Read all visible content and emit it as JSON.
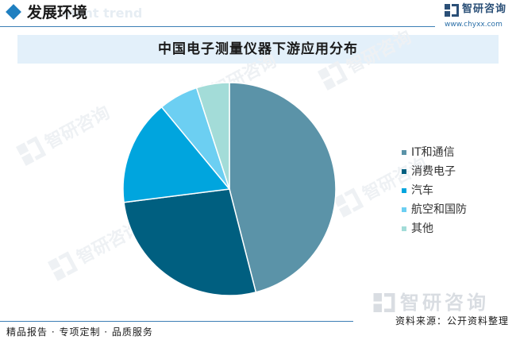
{
  "header": {
    "section_title": "发展环境",
    "section_watermark": "ment trend",
    "brand_name": "智研咨询",
    "brand_url": "www.chyxx.com"
  },
  "chart_data": {
    "type": "pie",
    "title": "中国电子测量仪器下游应用分布",
    "slices": [
      {
        "label": "IT和通信",
        "value": 46,
        "color": "#5b93a8"
      },
      {
        "label": "消费电子",
        "value": 27,
        "color": "#005f80"
      },
      {
        "label": "汽车",
        "value": 16,
        "color": "#00a5de"
      },
      {
        "label": "航空和国防",
        "value": 6,
        "color": "#6ccff2"
      },
      {
        "label": "其他",
        "value": 5,
        "color": "#a3dcd8"
      }
    ],
    "legend_position": "right"
  },
  "watermark": {
    "brand_name": "智研咨询"
  },
  "footer": {
    "tagline": "精品报告 · 专项定制 · 品质服务",
    "source": "资料来源：公开资料整理",
    "brand_name": "智研咨询"
  }
}
